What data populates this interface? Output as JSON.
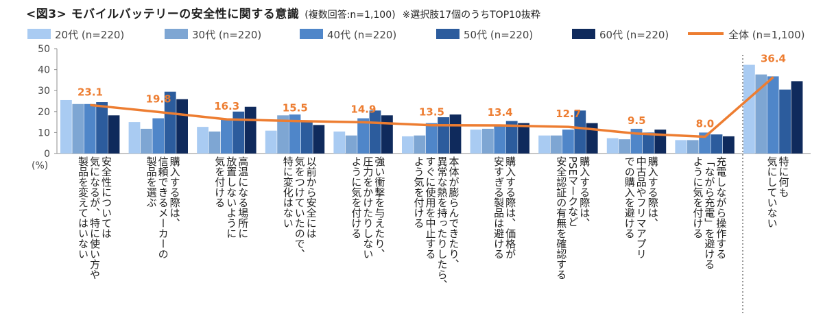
{
  "title": {
    "main": "<図3> モバイルバッテリーの安全性に関する意識",
    "sub": "(複数回答:n=1,100)",
    "note": "※選択肢17個のうちTOP10抜粋"
  },
  "unit_label": "(%)",
  "colors": {
    "s20": "#A9CBF2",
    "s30": "#7EA6D3",
    "s40": "#4F86C9",
    "s50": "#2C5C9D",
    "s60": "#0F2A5C",
    "total": "#ED7D31",
    "axis": "#8E8E8E",
    "separator": "#555555"
  },
  "chart_data": {
    "type": "bar",
    "title": "<図3> モバイルバッテリーの安全性に関する意識",
    "ylim": [
      0,
      50
    ],
    "yticks": [
      0,
      10,
      20,
      30,
      40,
      50
    ],
    "grid": false,
    "legend_position": "top",
    "categories": [
      "安全性については\n気になるが、特に使い方や\n製品を変えてはいない",
      "購入する際は、\n信頼できるメーカーの\n製品を選ぶ",
      "高温になる場所に\n放置しないように\n気を付ける",
      "以前から安全には\n気をつけていたので、\n特に変化はない",
      "強い衝撃を与えたり、\n圧力をかけたりしない\nように気を付ける",
      "本体が膨らんできたり、\n異常な熱を持ったりしたら、\nすぐに使用を中止する\nよう気を付ける",
      "購入する際は、価格が\n安すぎる製品は避ける",
      "購入する際は、\nPSEマークなど\n安全認証の有無を確認する",
      "購入する際は、\n中古品やフリマアプリ\nでの購入を避ける",
      "充電しながら操作する\n「ながら充電」を避ける\nように気を付ける",
      "特に何も\n気にしていない"
    ],
    "series": [
      {
        "name": "20代 (n=220)",
        "values": [
          25.5,
          15.0,
          12.7,
          10.9,
          10.5,
          8.2,
          11.4,
          8.6,
          7.3,
          6.4,
          42.3
        ]
      },
      {
        "name": "30代 (n=220)",
        "values": [
          23.6,
          11.8,
          10.5,
          18.2,
          8.6,
          8.6,
          11.8,
          8.6,
          6.8,
          6.4,
          37.7
        ]
      },
      {
        "name": "40代 (n=220)",
        "values": [
          23.6,
          16.8,
          16.4,
          18.6,
          16.8,
          14.5,
          13.2,
          11.4,
          11.8,
          10.0,
          36.8
        ]
      },
      {
        "name": "50代 (n=220)",
        "values": [
          24.5,
          29.5,
          20.0,
          15.5,
          20.5,
          17.3,
          15.5,
          20.5,
          10.0,
          9.1,
          30.5
        ]
      },
      {
        "name": "60代 (n=220)",
        "values": [
          18.2,
          25.9,
          22.3,
          13.6,
          18.2,
          18.6,
          14.5,
          14.5,
          11.4,
          8.2,
          34.5
        ]
      }
    ],
    "total": {
      "name": "全体 (n=1,100)",
      "values": [
        23.1,
        19.8,
        16.3,
        15.5,
        14.9,
        13.5,
        13.4,
        12.7,
        9.5,
        8.0,
        36.4
      ]
    }
  }
}
